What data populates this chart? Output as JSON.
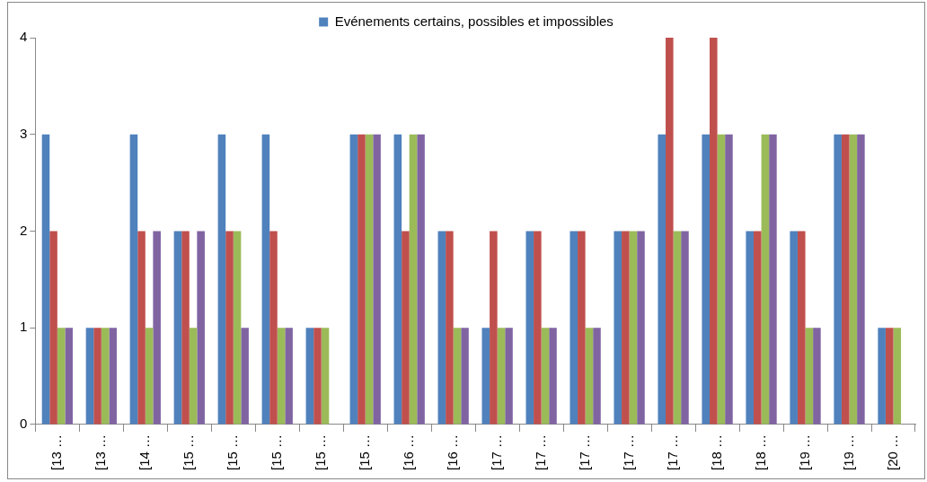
{
  "chart_data": {
    "type": "bar",
    "categories": [
      "[13 …",
      "[13 …",
      "[14 …",
      "[15 …",
      "[15 …",
      "[15 …",
      "[15 …",
      "[15 …",
      "[16 …",
      "[16 …",
      "[17 …",
      "[17 …",
      "[17 …",
      "[17 …",
      "[17 …",
      "[18 …",
      "[18 …",
      "[19 …",
      "[19 …",
      "[20 …"
    ],
    "series": [
      {
        "name": "Evénements certains, possibles et impossibles",
        "color": "#4f81bd",
        "values": [
          3,
          1,
          3,
          2,
          3,
          3,
          1,
          3,
          3,
          2,
          1,
          2,
          2,
          2,
          3,
          3,
          2,
          2,
          3,
          1
        ]
      },
      {
        "color": "#c0504d",
        "values": [
          2,
          1,
          2,
          2,
          2,
          2,
          1,
          3,
          2,
          2,
          2,
          2,
          2,
          2,
          4,
          4,
          2,
          2,
          3,
          1
        ]
      },
      {
        "color": "#9bbb59",
        "values": [
          1,
          1,
          1,
          1,
          2,
          1,
          1,
          3,
          3,
          1,
          1,
          1,
          1,
          2,
          2,
          3,
          3,
          1,
          3,
          1
        ]
      },
      {
        "color": "#8064a2",
        "values": [
          1,
          1,
          2,
          2,
          1,
          1,
          0,
          3,
          3,
          1,
          1,
          1,
          1,
          2,
          2,
          3,
          3,
          1,
          3,
          0
        ]
      }
    ],
    "ylim": [
      0,
      4
    ],
    "yticks": [
      0,
      1,
      2,
      3,
      4
    ],
    "grid": false,
    "legend": "top"
  }
}
